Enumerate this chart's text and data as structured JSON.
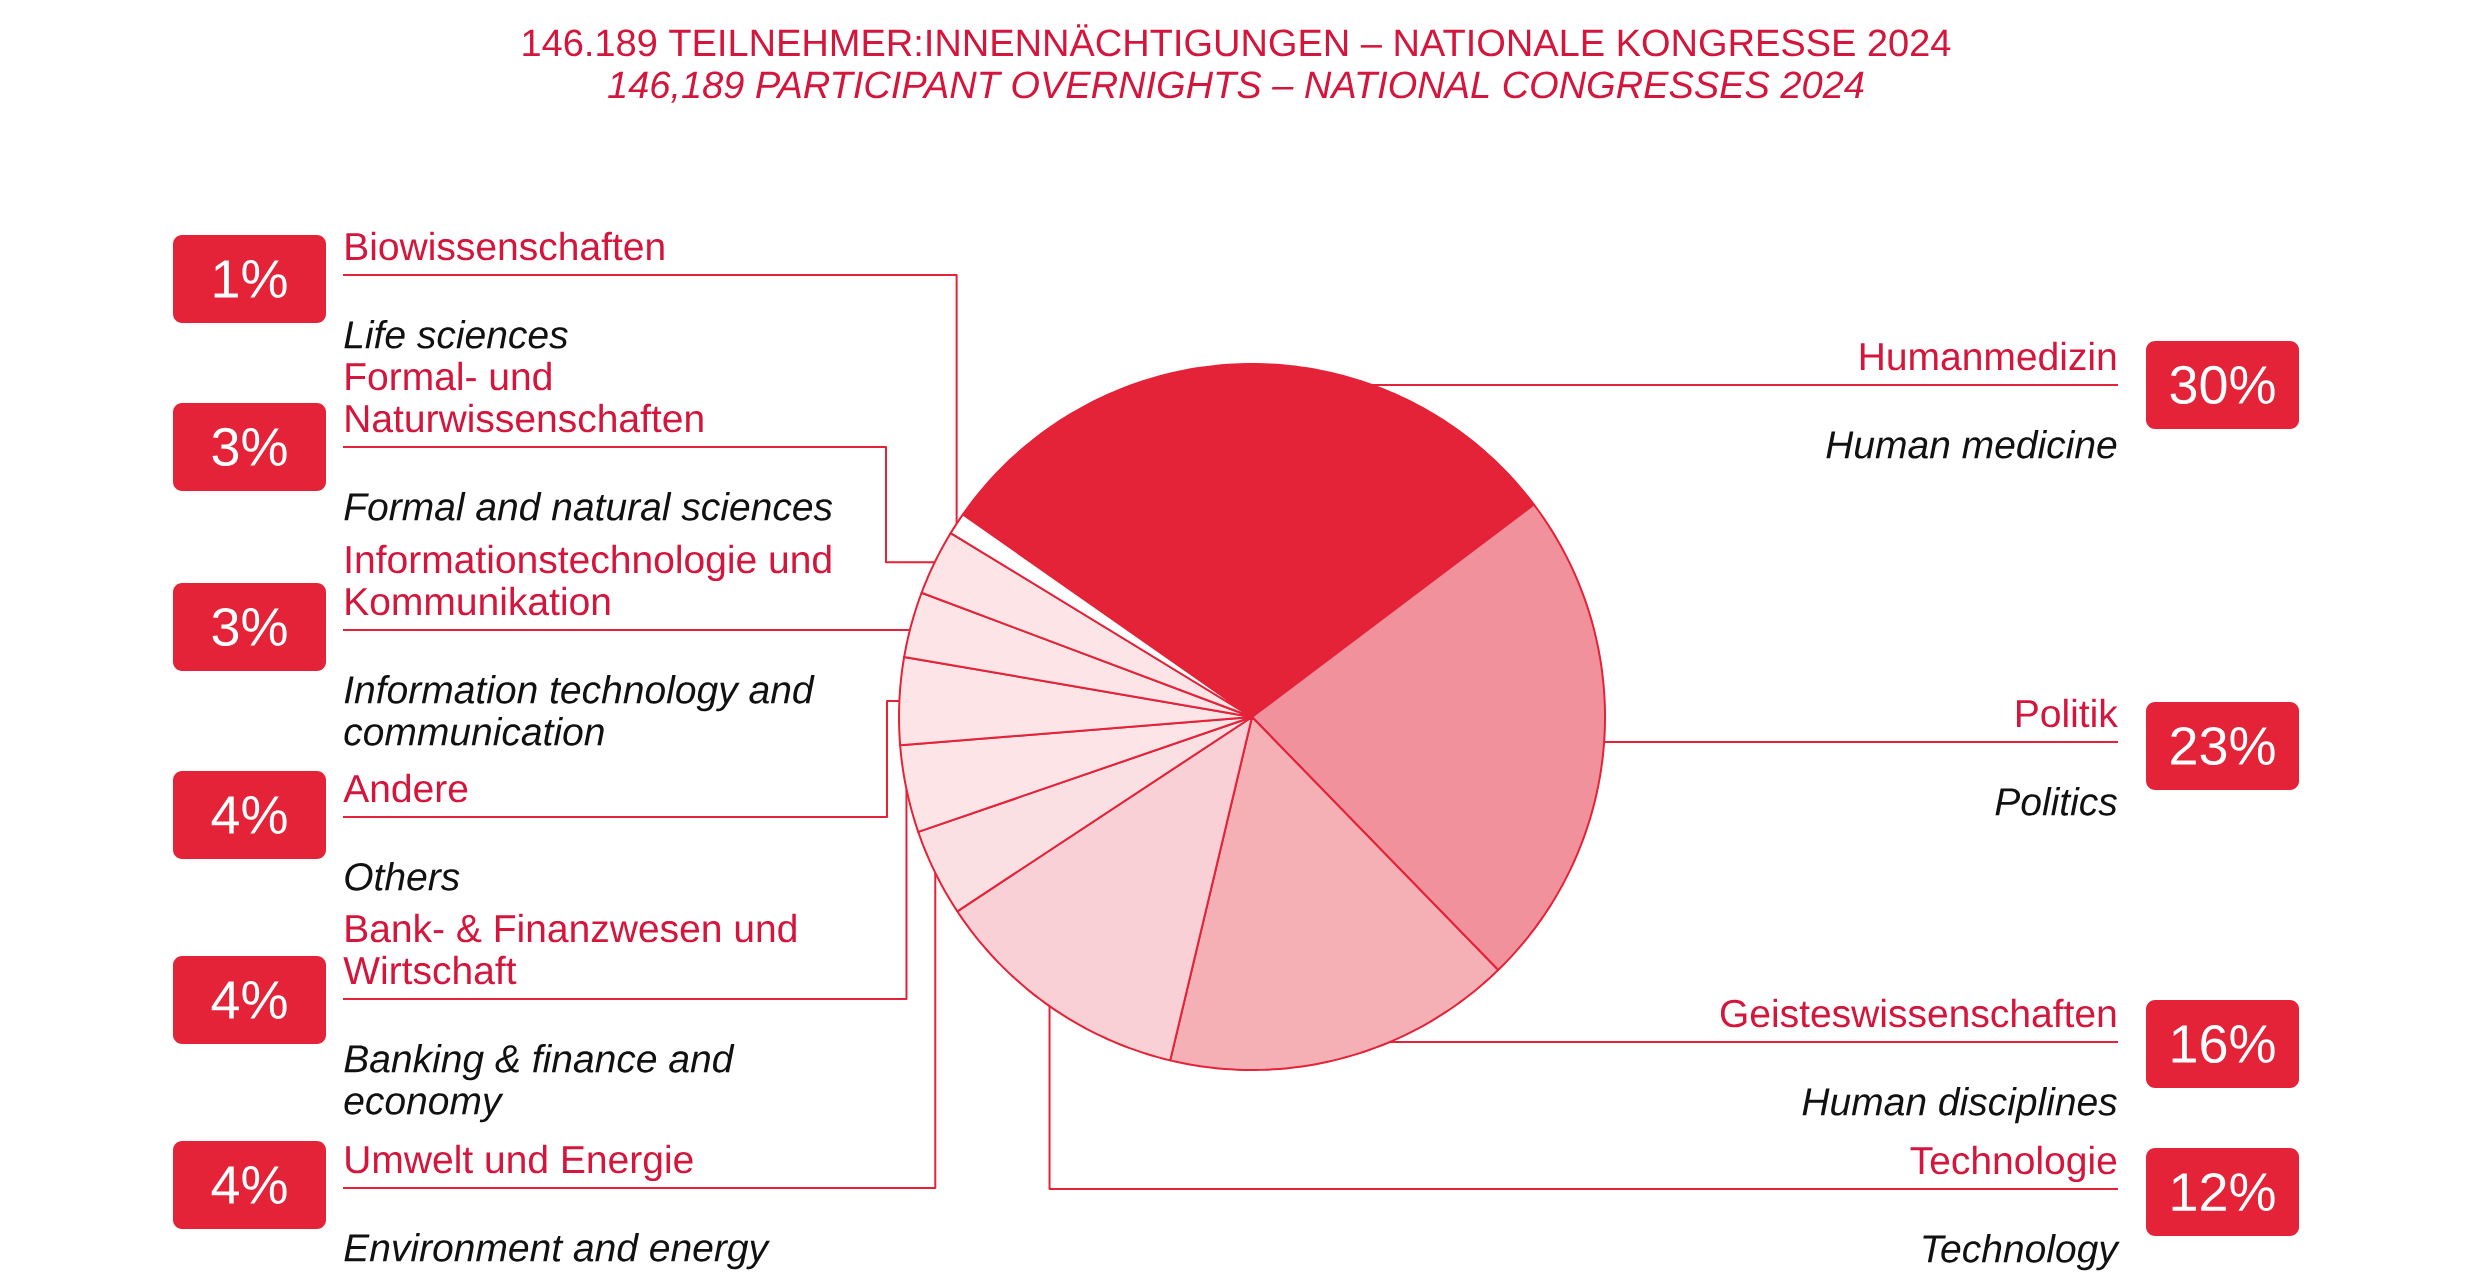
{
  "chart_data": {
    "type": "pie",
    "title": "146.189 TEILNEHMER:INNENNÄCHTIGUNGEN – NATIONALE KONGRESSE 2024",
    "subtitle": "146,189 PARTICIPANT OVERNIGHTS – NATIONAL CONGRESSES 2024",
    "categories": [
      "Humanmedizin",
      "Politik",
      "Geisteswissenschaften",
      "Technologie",
      "Umwelt und Energie",
      "Bank- & Finanzwesen und Wirtschaft",
      "Andere",
      "Informationstechnologie und Kommunikation",
      "Formal- und Naturwissenschaften",
      "Biowissenschaften"
    ],
    "values": [
      30,
      23,
      16,
      12,
      4,
      4,
      4,
      3,
      3,
      1
    ],
    "value_labels": [
      "30%",
      "23%",
      "16%",
      "12%",
      "4%",
      "4%",
      "4%",
      "3%",
      "3%",
      "1%"
    ],
    "colors": [
      "#e42338",
      "#f0919b",
      "#f5b0b6",
      "#f9d0d5",
      "#fbe0e3",
      "#fce4e7",
      "#fce4e7",
      "#fce4e7",
      "#fce4e7",
      "#ffffff"
    ],
    "annotations": [
      "Human medicine",
      "Politics",
      "Human disciplines",
      "Technology",
      "Environment and energy",
      "Banking & finance and economy",
      "Others",
      "Information technology and communication",
      "Formal and natural sciences",
      "Life sciences"
    ]
  }
}
